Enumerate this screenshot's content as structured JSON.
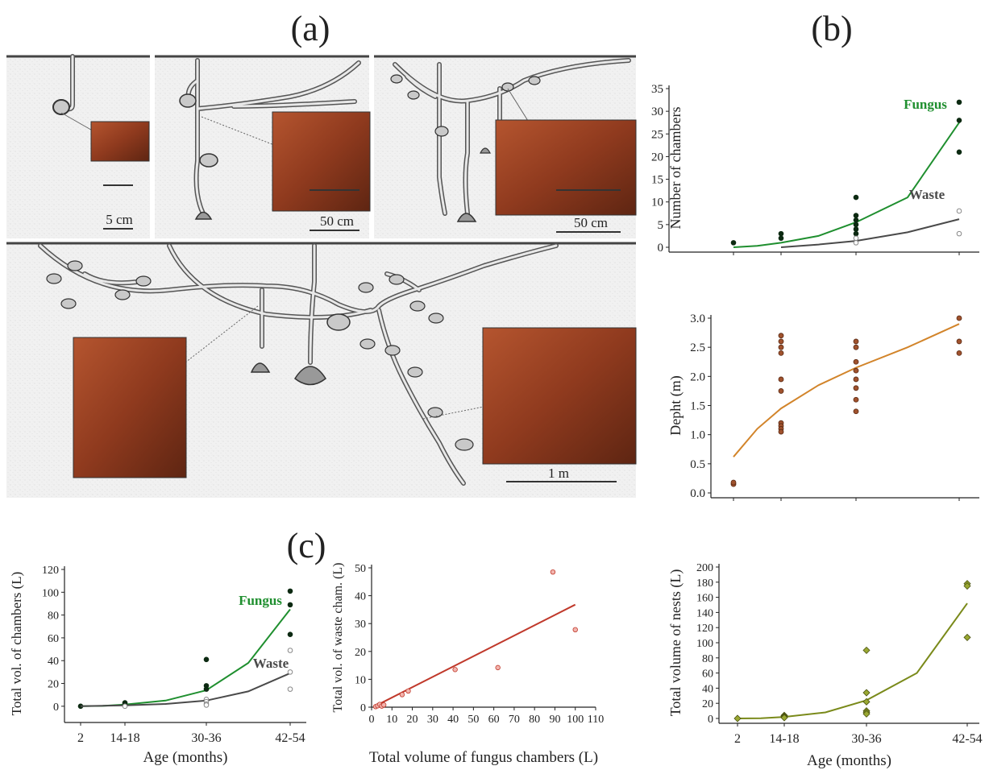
{
  "panel_labels": {
    "a": "(a)",
    "b": "(b)",
    "c": "(c)"
  },
  "scale_bars": [
    "5 cm",
    "50 cm",
    "50 cm",
    "1 m"
  ],
  "chart_data": [
    {
      "id": "chambers",
      "type": "scatter",
      "ylabel": "Number of chambers",
      "xlabel": "",
      "categories": [
        "2",
        "14-18",
        "30-36",
        "42-54"
      ],
      "ylim": [
        0,
        35
      ],
      "yticks": [
        0,
        5,
        10,
        15,
        20,
        25,
        30,
        35
      ],
      "series": [
        {
          "name": "Fungus",
          "color": "#1f8f2f",
          "marker": "filled",
          "points": [
            [
              0,
              1
            ],
            [
              1,
              3
            ],
            [
              1,
              2
            ],
            [
              2,
              11
            ],
            [
              2,
              7
            ],
            [
              2,
              6
            ],
            [
              2,
              5
            ],
            [
              2,
              4
            ],
            [
              2,
              3
            ],
            [
              3,
              32
            ],
            [
              3,
              28
            ],
            [
              3,
              21
            ]
          ],
          "fit": [
            [
              0,
              0
            ],
            [
              0.5,
              0.3
            ],
            [
              1,
              1
            ],
            [
              1.5,
              2.5
            ],
            [
              2,
              5.5
            ],
            [
              2.5,
              11
            ],
            [
              3,
              27.5
            ]
          ]
        },
        {
          "name": "Waste",
          "color": "#4a4a4a",
          "marker": "open",
          "points": [
            [
              2,
              1
            ],
            [
              2,
              2
            ],
            [
              3,
              8
            ],
            [
              3,
              3
            ]
          ],
          "fit": [
            [
              1,
              0
            ],
            [
              1.5,
              0.6
            ],
            [
              2,
              1.4
            ],
            [
              2.5,
              3.3
            ],
            [
              3,
              6.2
            ]
          ]
        }
      ]
    },
    {
      "id": "depth",
      "type": "scatter",
      "ylabel": "Depht (m)",
      "xlabel": "",
      "categories": [
        "2",
        "14-18",
        "30-36",
        "42-54"
      ],
      "ylim": [
        0,
        3
      ],
      "yticks": [
        "0.0",
        "0.5",
        "1.0",
        "1.5",
        "2.0",
        "2.5",
        "3.0"
      ],
      "series": [
        {
          "name": "",
          "color": "#d2842a",
          "marker": "dot",
          "points": [
            [
              0,
              0.15
            ],
            [
              0,
              0.18
            ],
            [
              1,
              2.7
            ],
            [
              1,
              2.6
            ],
            [
              1,
              2.5
            ],
            [
              1,
              2.4
            ],
            [
              1,
              1.95
            ],
            [
              1,
              1.75
            ],
            [
              1,
              1.2
            ],
            [
              1,
              1.15
            ],
            [
              1,
              1.1
            ],
            [
              1,
              1.05
            ],
            [
              2,
              2.6
            ],
            [
              2,
              2.5
            ],
            [
              2,
              2.25
            ],
            [
              2,
              2.1
            ],
            [
              2,
              1.95
            ],
            [
              2,
              1.8
            ],
            [
              2,
              1.6
            ],
            [
              2,
              1.4
            ],
            [
              3,
              3.0
            ],
            [
              3,
              2.6
            ],
            [
              3,
              2.4
            ]
          ],
          "fit": [
            [
              0,
              0.62
            ],
            [
              0.5,
              1.1
            ],
            [
              1,
              1.45
            ],
            [
              1.5,
              1.85
            ],
            [
              2,
              2.15
            ],
            [
              2.5,
              2.5
            ],
            [
              3,
              2.9
            ]
          ]
        }
      ]
    },
    {
      "id": "nest-volume",
      "type": "scatter",
      "ylabel": "Total volume of nests (L)",
      "xlabel": "Age (months)",
      "categories": [
        "2",
        "14-18",
        "30-36",
        "42-54"
      ],
      "ylim": [
        0,
        200
      ],
      "yticks": [
        0,
        20,
        40,
        60,
        80,
        100,
        120,
        140,
        160,
        180,
        200
      ],
      "series": [
        {
          "name": "",
          "color": "#7a8a1a",
          "marker": "diamond",
          "points": [
            [
              0,
              0
            ],
            [
              1,
              4
            ],
            [
              1,
              3
            ],
            [
              1,
              2
            ],
            [
              1,
              1
            ],
            [
              2,
              90
            ],
            [
              2,
              34
            ],
            [
              2,
              22
            ],
            [
              2,
              10
            ],
            [
              2,
              8
            ],
            [
              2,
              6
            ],
            [
              3,
              178
            ],
            [
              3,
              175
            ],
            [
              3,
              107
            ]
          ],
          "fit": [
            [
              0,
              0
            ],
            [
              0.5,
              0.2
            ],
            [
              1,
              2
            ],
            [
              1.5,
              8
            ],
            [
              2,
              24
            ],
            [
              2.5,
              60
            ],
            [
              3,
              152
            ]
          ]
        }
      ]
    },
    {
      "id": "chamber-volume",
      "type": "scatter",
      "ylabel": "Total vol. of chambers (L)",
      "xlabel": "Age (months)",
      "categories": [
        "2",
        "14-18",
        "30-36",
        "42-54"
      ],
      "ylim": [
        -10,
        120
      ],
      "yticks": [
        0,
        20,
        40,
        60,
        80,
        100,
        120
      ],
      "series": [
        {
          "name": "Fungus",
          "color": "#1f8f2f",
          "marker": "filled",
          "points": [
            [
              0,
              0
            ],
            [
              1,
              3
            ],
            [
              1,
              2
            ],
            [
              2,
              41
            ],
            [
              2,
              18
            ],
            [
              2,
              15
            ],
            [
              2,
              5
            ],
            [
              3,
              101
            ],
            [
              3,
              89
            ],
            [
              3,
              63
            ]
          ],
          "fit": [
            [
              0,
              0
            ],
            [
              0.5,
              0.3
            ],
            [
              1,
              1.5
            ],
            [
              1.5,
              5
            ],
            [
              2,
              14
            ],
            [
              2.5,
              38
            ],
            [
              3,
              85
            ]
          ]
        },
        {
          "name": "Waste",
          "color": "#4a4a4a",
          "marker": "open",
          "points": [
            [
              1,
              0
            ],
            [
              2,
              6
            ],
            [
              2,
              4
            ],
            [
              2,
              2
            ],
            [
              2,
              1
            ],
            [
              3,
              49
            ],
            [
              3,
              30
            ],
            [
              3,
              15
            ]
          ],
          "fit": [
            [
              0,
              0
            ],
            [
              1,
              0.8
            ],
            [
              1.5,
              2
            ],
            [
              2,
              5
            ],
            [
              2.5,
              13
            ],
            [
              3,
              29
            ]
          ]
        }
      ]
    },
    {
      "id": "waste-vs-fungus",
      "type": "scatter",
      "ylabel": "Total vol. of waste cham. (L)",
      "xlabel": "Total volume of fungus chambers (L)",
      "xlim": [
        0,
        110
      ],
      "ylim": [
        0,
        50
      ],
      "xticks": [
        0,
        10,
        20,
        30,
        40,
        50,
        60,
        70,
        80,
        90,
        100,
        110
      ],
      "yticks": [
        0,
        10,
        20,
        30,
        40,
        50
      ],
      "series": [
        {
          "name": "",
          "color": "#c0392b",
          "marker": "pink",
          "points": [
            [
              2,
              0.2
            ],
            [
              3,
              0.5
            ],
            [
              4,
              1
            ],
            [
              5,
              0.4
            ],
            [
              6,
              0.8
            ],
            [
              15,
              4.5
            ],
            [
              18,
              5.8
            ],
            [
              41,
              13.5
            ],
            [
              62,
              14.2
            ],
            [
              89,
              48.5
            ],
            [
              100,
              27.8
            ]
          ],
          "fit": [
            [
              2,
              0.5
            ],
            [
              100,
              36.8
            ]
          ]
        }
      ]
    }
  ]
}
